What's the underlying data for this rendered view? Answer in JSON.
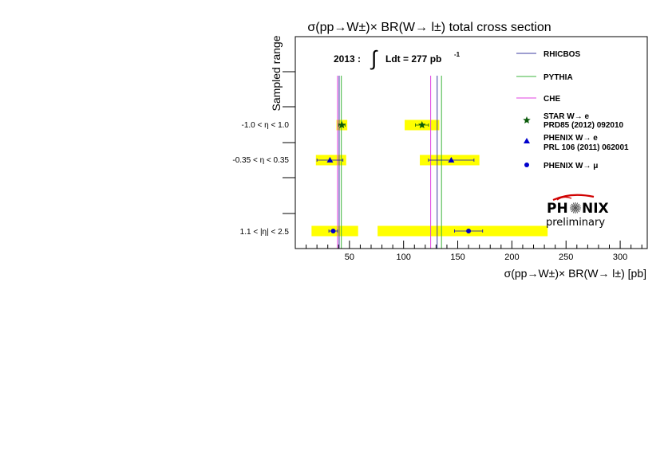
{
  "chart_data": {
    "type": "scatter",
    "title": "σ(pp→W±)× BR(W→ l±) total cross section",
    "xlabel": "σ(pp→W±)× BR(W→ l±) [pb]",
    "ylabel": "Sampled range",
    "xlim": [
      0,
      325
    ],
    "x_ticks": [
      50,
      100,
      150,
      200,
      250,
      300
    ],
    "grid": false,
    "legend_position": "top-right",
    "luminosity_label": "2013 :",
    "luminosity_integral": "∫",
    "luminosity_text": "Ldt =  277 pb",
    "luminosity_exp": "-1",
    "rows": [
      {
        "label": "-1.0 < η < 1.0"
      },
      {
        "label": "-0.35 < η < 0.35"
      },
      {
        "label": "1.1 < |η| < 2.5"
      }
    ],
    "theory_lines": [
      {
        "name": "RHICBOS",
        "color": "#3c3ca0",
        "values": [
          40.5,
          131
        ]
      },
      {
        "name": "PYTHIA",
        "color": "#3cb43c",
        "values": [
          42.5,
          135
        ]
      },
      {
        "name": "CHE",
        "color": "#e040e0",
        "values": [
          39,
          125
        ]
      }
    ],
    "series": [
      {
        "name": "STAR W→ e",
        "name2": "PRD85 (2012) 092010",
        "marker": "star",
        "color": "#0a5a0a",
        "points": [
          {
            "row": 0,
            "x": 43,
            "xerr": 3,
            "sys": [
              38,
              48
            ]
          },
          {
            "row": 0,
            "x": 117,
            "xerr": 6,
            "sys": [
              101,
              133
            ]
          }
        ]
      },
      {
        "name": "PHENIX W→ e",
        "name2": "PRL 106 (2011) 062001",
        "marker": "triangle",
        "color": "#0000cc",
        "points": [
          {
            "row": 1,
            "x": 32,
            "xerr": 12,
            "sys": [
              19,
              47
            ]
          },
          {
            "row": 1,
            "x": 144,
            "xerr": 21,
            "sys": [
              115,
              170
            ]
          }
        ]
      },
      {
        "name": "PHENIX W→ μ",
        "marker": "circle",
        "color": "#0000cc",
        "points": [
          {
            "row": 2,
            "x": 35,
            "xerr": 4,
            "sys": [
              15,
              58
            ]
          },
          {
            "row": 2,
            "x": 160,
            "xerr": 13,
            "sys": [
              76,
              233
            ]
          }
        ]
      }
    ],
    "logo_text_left": "PH",
    "logo_text_right": "NIX",
    "logo_subtitle": "preliminary"
  },
  "colors": {
    "systematic_band": "#ffff00",
    "axis": "#000000"
  }
}
